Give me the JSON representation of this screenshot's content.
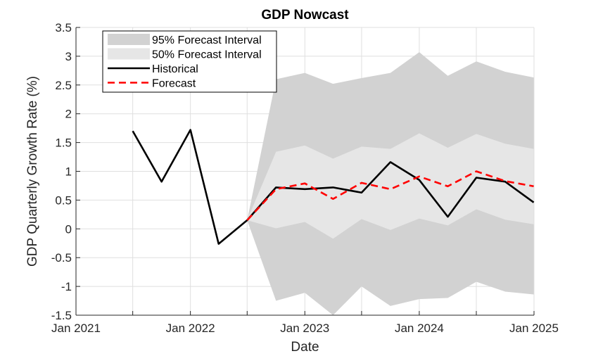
{
  "chart_data": {
    "type": "line",
    "title": "GDP Nowcast",
    "xlabel": "Date",
    "ylabel": "GDP Quarterly Growth Rate (%)",
    "xlim": [
      "2021-01-01",
      "2025-01-01"
    ],
    "ylim": [
      -1.5,
      3.5
    ],
    "xticks": [
      {
        "date": "2021-01-01",
        "label": "Jan 2021"
      },
      {
        "date": "2022-01-01",
        "label": "Jan 2022"
      },
      {
        "date": "2023-01-01",
        "label": "Jan 2023"
      },
      {
        "date": "2024-01-01",
        "label": "Jan 2024"
      },
      {
        "date": "2025-01-01",
        "label": "Jan 2025"
      }
    ],
    "xgrid_dates": [
      "2021-01-01",
      "2021-07-01",
      "2022-01-01",
      "2022-07-01",
      "2023-01-01",
      "2023-07-01",
      "2024-01-01",
      "2024-07-01",
      "2025-01-01"
    ],
    "yticks": [
      -1.5,
      -1,
      -0.5,
      0,
      0.5,
      1,
      1.5,
      2,
      2.5,
      3,
      3.5
    ],
    "ytick_labels": [
      "-1.5",
      "-1",
      "-0.5",
      "0",
      "0.5",
      "1",
      "1.5",
      "2",
      "2.5",
      "3",
      "3.5"
    ],
    "grid": true,
    "legend_position": "top-left",
    "series": [
      {
        "name": "95% Forecast Interval",
        "kind": "band",
        "color": "#d2d2d2",
        "x": [
          "2022-07-01",
          "2022-10-01",
          "2023-01-01",
          "2023-04-01",
          "2023-07-01",
          "2023-10-01",
          "2024-01-01",
          "2024-04-01",
          "2024-07-01",
          "2024-10-01",
          "2024-12-31"
        ],
        "upper": [
          0.15,
          2.6,
          2.71,
          2.52,
          2.62,
          2.71,
          3.07,
          2.66,
          2.91,
          2.73,
          2.63
        ],
        "lower": [
          0.15,
          -1.25,
          -1.11,
          -1.5,
          -1.0,
          -1.34,
          -1.22,
          -1.2,
          -0.92,
          -1.09,
          -1.14
        ]
      },
      {
        "name": "50% Forecast Interval",
        "kind": "band",
        "color": "#e6e6e6",
        "x": [
          "2022-07-01",
          "2022-10-01",
          "2023-01-01",
          "2023-04-01",
          "2023-07-01",
          "2023-10-01",
          "2024-01-01",
          "2024-04-01",
          "2024-07-01",
          "2024-10-01",
          "2024-12-31"
        ],
        "upper": [
          0.15,
          1.34,
          1.45,
          1.22,
          1.43,
          1.39,
          1.66,
          1.41,
          1.65,
          1.48,
          1.39
        ],
        "lower": [
          0.15,
          0.01,
          0.12,
          -0.17,
          0.17,
          -0.02,
          0.18,
          0.06,
          0.34,
          0.16,
          0.08
        ]
      },
      {
        "name": "Historical",
        "kind": "line",
        "color": "#000000",
        "x": [
          "2021-07-01",
          "2021-10-01",
          "2022-01-01",
          "2022-04-01",
          "2022-07-01",
          "2022-10-01",
          "2023-01-01",
          "2023-04-01",
          "2023-07-01",
          "2023-10-01",
          "2024-01-01",
          "2024-04-01",
          "2024-07-01",
          "2024-10-01",
          "2024-12-31"
        ],
        "values": [
          1.7,
          0.82,
          1.72,
          -0.26,
          0.15,
          0.72,
          0.69,
          0.72,
          0.63,
          1.16,
          0.85,
          0.21,
          0.89,
          0.82,
          0.46
        ]
      },
      {
        "name": "Forecast",
        "kind": "dashed-line",
        "color": "#ff0000",
        "x": [
          "2022-07-01",
          "2022-10-01",
          "2023-01-01",
          "2023-04-01",
          "2023-07-01",
          "2023-10-01",
          "2024-01-01",
          "2024-04-01",
          "2024-07-01",
          "2024-10-01",
          "2024-12-31"
        ],
        "values": [
          0.15,
          0.69,
          0.79,
          0.52,
          0.8,
          0.69,
          0.91,
          0.74,
          1.0,
          0.83,
          0.74
        ]
      }
    ]
  }
}
